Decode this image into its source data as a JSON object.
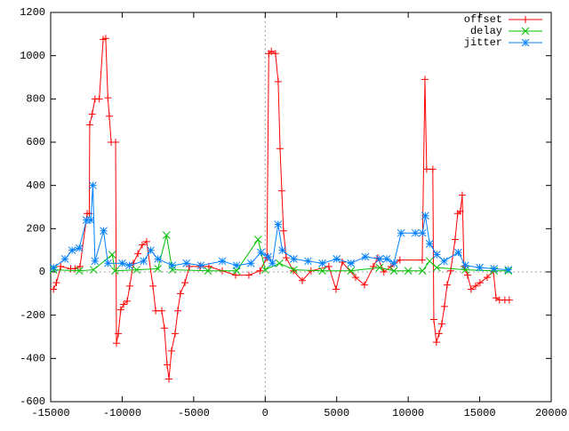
{
  "chart_data": {
    "type": "line",
    "xlim": [
      -15000,
      20000
    ],
    "xticks": [
      -15000,
      -10000,
      -5000,
      0,
      5000,
      10000,
      15000,
      20000
    ],
    "ylim": [
      -600,
      1200
    ],
    "yticks": [
      -600,
      -400,
      -200,
      0,
      200,
      400,
      600,
      800,
      1000,
      1200
    ],
    "legend": "top-right",
    "zero_axes": true,
    "series": [
      {
        "name": "offset",
        "color": "#ff0000",
        "marker": "+",
        "x": [
          -14800,
          -14600,
          -14300,
          -13600,
          -13300,
          -12950,
          -12450,
          -12300,
          -12270,
          -12100,
          -11900,
          -11600,
          -11330,
          -11150,
          -11000,
          -10900,
          -10770,
          -10460,
          -10400,
          -10270,
          -10100,
          -9900,
          -9650,
          -9470,
          -9220,
          -8900,
          -8600,
          -8290,
          -7850,
          -7660,
          -7230,
          -7050,
          -6860,
          -6730,
          -6550,
          -6300,
          -6110,
          -5930,
          -5610,
          -5300,
          -4560,
          -3940,
          -3000,
          -2070,
          -1140,
          -370,
          120,
          250,
          430,
          720,
          910,
          1040,
          1160,
          1280,
          1470,
          1970,
          2590,
          3210,
          4450,
          4950,
          5390,
          6320,
          6940,
          7560,
          7870,
          8300,
          8800,
          9420,
          10980,
          11170,
          11290,
          11720,
          11790,
          11970,
          12160,
          12350,
          12530,
          12720,
          12970,
          13280,
          13460,
          13650,
          13780,
          13900,
          14150,
          14400,
          14710,
          15020,
          15520,
          15950,
          16140,
          16380,
          16760,
          17070
        ],
        "values": [
          -80,
          -50,
          25,
          15,
          15,
          25,
          270,
          270,
          680,
          730,
          800,
          800,
          1075,
          1080,
          805,
          720,
          600,
          600,
          -330,
          -285,
          -175,
          -150,
          -135,
          -65,
          40,
          85,
          125,
          140,
          -65,
          -180,
          -180,
          -260,
          -430,
          -495,
          -365,
          -285,
          -180,
          -100,
          -50,
          25,
          25,
          25,
          5,
          -15,
          -15,
          5,
          65,
          1010,
          1020,
          1010,
          880,
          570,
          375,
          190,
          65,
          5,
          -40,
          5,
          25,
          -80,
          45,
          -25,
          -60,
          25,
          65,
          0,
          25,
          55,
          55,
          890,
          475,
          475,
          -220,
          -325,
          -285,
          -240,
          -160,
          -60,
          5,
          150,
          270,
          280,
          355,
          25,
          -15,
          -80,
          -65,
          -50,
          -25,
          5,
          -120,
          -130,
          -130,
          -130
        ]
      },
      {
        "name": "delay",
        "color": "#00c000",
        "marker": "x",
        "x": [
          -14800,
          -13000,
          -12000,
          -10700,
          -10500,
          -9000,
          -7500,
          -6900,
          -6500,
          -4000,
          -2000,
          -500,
          0,
          1000,
          2000,
          4000,
          6000,
          8000,
          9000,
          10000,
          11000,
          11500,
          12000,
          14000,
          16000,
          17000
        ],
        "values": [
          10,
          5,
          10,
          80,
          5,
          10,
          15,
          170,
          10,
          5,
          5,
          150,
          10,
          40,
          10,
          5,
          5,
          20,
          5,
          5,
          5,
          50,
          20,
          10,
          5,
          5
        ]
      },
      {
        "name": "jitter",
        "color": "#0080ff",
        "marker": "*",
        "x": [
          -14800,
          -14000,
          -13500,
          -13000,
          -12500,
          -12200,
          -12050,
          -11900,
          -11300,
          -11000,
          -10000,
          -9500,
          -8500,
          -8000,
          -7500,
          -6500,
          -5500,
          -4500,
          -3000,
          -2000,
          -1000,
          -300,
          200,
          500,
          900,
          1200,
          2000,
          3000,
          4000,
          5000,
          6000,
          7000,
          8000,
          8500,
          9000,
          9500,
          10500,
          11000,
          11200,
          11500,
          12000,
          12500,
          13500,
          14000,
          15000,
          16000,
          17000
        ],
        "values": [
          20,
          60,
          100,
          110,
          240,
          240,
          400,
          50,
          190,
          40,
          40,
          30,
          50,
          100,
          60,
          30,
          40,
          30,
          50,
          30,
          40,
          90,
          70,
          40,
          220,
          100,
          60,
          50,
          40,
          60,
          40,
          70,
          60,
          60,
          40,
          180,
          180,
          180,
          260,
          130,
          80,
          50,
          90,
          30,
          20,
          15,
          10
        ]
      }
    ]
  }
}
